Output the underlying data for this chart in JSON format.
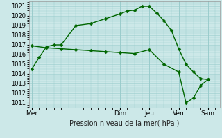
{
  "background_color": "#cce8e8",
  "grid_color": "#99cccc",
  "line_color": "#006600",
  "xlabel": "Pression niveau de la mer( hPa )",
  "ylim": [
    1010.5,
    1021.5
  ],
  "yticks": [
    1011,
    1012,
    1013,
    1014,
    1015,
    1016,
    1017,
    1018,
    1019,
    1020,
    1021
  ],
  "day_labels": [
    "Mer",
    "Dim",
    "Jeu",
    "Ven",
    "Sam"
  ],
  "day_positions": [
    0,
    3,
    4,
    5,
    6
  ],
  "xlim": [
    -0.1,
    6.4
  ],
  "series1_x": [
    0,
    0.25,
    0.5,
    0.75,
    1.0,
    1.5,
    2.0,
    2.5,
    3.0,
    3.25,
    3.5,
    3.75,
    4.0,
    4.25,
    4.5,
    4.75,
    5.0,
    5.25,
    5.5,
    5.75,
    6.0
  ],
  "series1_y": [
    1014.5,
    1015.7,
    1016.8,
    1017.0,
    1017.0,
    1019.0,
    1019.2,
    1019.7,
    1020.2,
    1020.5,
    1020.6,
    1021.0,
    1021.0,
    1020.3,
    1019.5,
    1018.5,
    1016.6,
    1015.0,
    1014.2,
    1013.5,
    1013.4
  ],
  "series2_x": [
    0,
    0.5,
    1.0,
    1.5,
    2.0,
    2.5,
    3.0,
    3.5,
    4.0,
    4.5,
    5.0,
    5.25,
    5.5,
    5.75,
    6.0
  ],
  "series2_y": [
    1016.9,
    1016.7,
    1016.6,
    1016.5,
    1016.4,
    1016.3,
    1016.2,
    1016.1,
    1016.5,
    1015.0,
    1014.2,
    1011.0,
    1011.5,
    1012.8,
    1013.4
  ],
  "vline_positions": [
    0,
    3.0,
    4.0,
    5.0,
    6.0
  ],
  "marker_size": 2.5,
  "linewidth": 1.0,
  "ytick_fontsize": 6,
  "xtick_fontsize": 6.5,
  "xlabel_fontsize": 7
}
